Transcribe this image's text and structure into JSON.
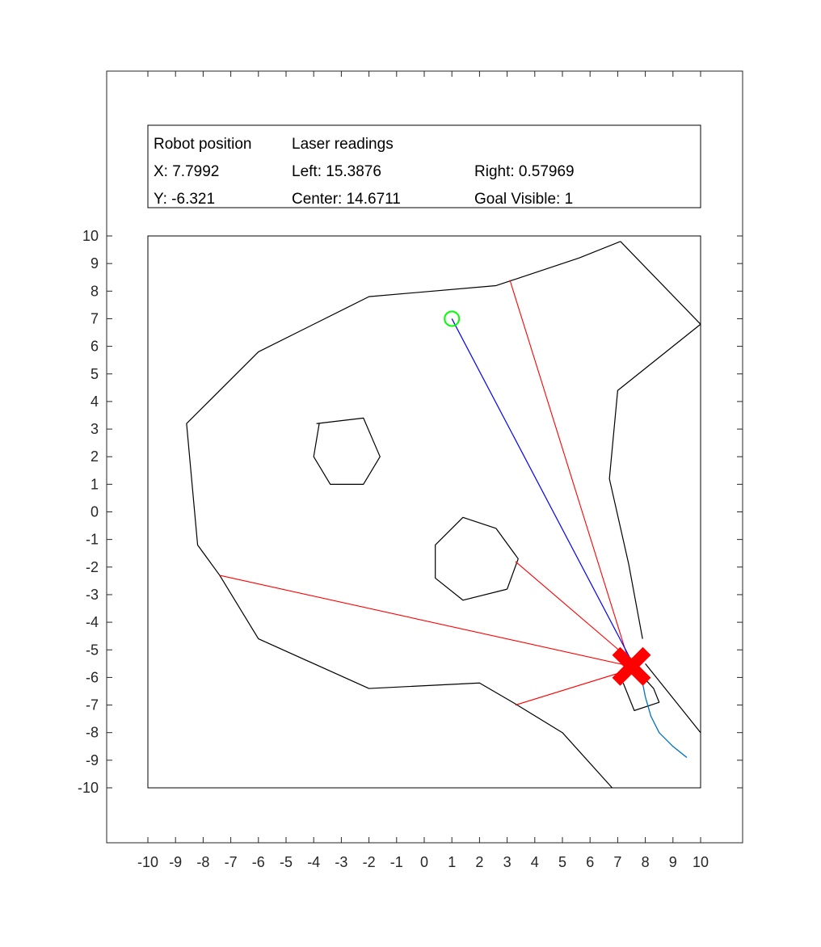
{
  "info_panel": {
    "robot_position_label": "Robot position",
    "laser_readings_label": "Laser readings",
    "x_text": "X: 7.7992",
    "y_text": "Y: -6.321",
    "left_text": "Left: 15.3876",
    "center_text": "Center: 14.6711",
    "right_text": "Right: 0.57969",
    "goal_visible_text": "Goal Visible: 1"
  },
  "chart_data": {
    "type": "line",
    "xlim": [
      -10,
      10
    ],
    "ylim": [
      -10,
      10
    ],
    "outer_xlim": [
      -11.5,
      11.5
    ],
    "outer_ylim": [
      -12,
      16
    ],
    "xticks": [
      -10,
      -9,
      -8,
      -7,
      -6,
      -5,
      -4,
      -3,
      -2,
      -1,
      0,
      1,
      2,
      3,
      4,
      5,
      6,
      7,
      8,
      9,
      10
    ],
    "yticks": [
      10,
      9,
      8,
      7,
      6,
      5,
      4,
      3,
      2,
      1,
      0,
      -1,
      -2,
      -3,
      -4,
      -5,
      -6,
      -7,
      -8,
      -9,
      -10
    ],
    "grid": false,
    "colors": {
      "walls": "#000000",
      "laser": "#ff0000",
      "goal_line": "#0000ff",
      "goal": "#00ff00",
      "path": "#0072bd",
      "robot": "#ff0000"
    },
    "environment_outline": [
      [
        7.1,
        9.8
      ],
      [
        5.6,
        9.2
      ],
      [
        2.6,
        8.2
      ],
      [
        -2.0,
        7.8
      ],
      [
        -6.0,
        5.8
      ],
      [
        -8.6,
        3.2
      ],
      [
        -8.2,
        -1.2
      ],
      [
        -7.4,
        -2.3
      ],
      [
        -6.0,
        -4.6
      ],
      [
        -2.0,
        -6.4
      ],
      [
        2.0,
        -6.2
      ],
      [
        3.2,
        -6.9
      ],
      [
        5.0,
        -8.0
      ],
      [
        6.8,
        -10.0
      ]
    ],
    "environment_outline_right": [
      [
        7.1,
        9.8
      ],
      [
        10.0,
        6.8
      ],
      [
        7.0,
        4.4
      ],
      [
        6.7,
        1.2
      ],
      [
        7.4,
        -1.9
      ],
      [
        7.9,
        -4.6
      ]
    ],
    "right_wall_lower": [
      [
        8.0,
        -5.5
      ],
      [
        10.0,
        -8.0
      ]
    ],
    "robot_box": [
      [
        7.3,
        -5.3
      ],
      [
        8.3,
        -6.4
      ],
      [
        8.5,
        -6.9
      ],
      [
        7.6,
        -7.2
      ],
      [
        7.2,
        -6.2
      ]
    ],
    "obstacles": [
      [
        [
          -3.9,
          3.2
        ],
        [
          -2.2,
          3.4
        ],
        [
          -1.6,
          2.0
        ],
        [
          -2.2,
          1.0
        ],
        [
          -3.4,
          1.0
        ],
        [
          -4.0,
          2.0
        ],
        [
          -3.8,
          3.2
        ]
      ],
      [
        [
          3.0,
          -2.8
        ],
        [
          1.4,
          -3.2
        ],
        [
          0.4,
          -2.4
        ],
        [
          0.4,
          -1.2
        ],
        [
          1.4,
          -0.2
        ],
        [
          2.6,
          -0.6
        ],
        [
          3.4,
          -1.7
        ],
        [
          3.0,
          -2.8
        ]
      ]
    ],
    "laser_rays": [
      [
        [
          7.4,
          -5.4
        ],
        [
          3.1,
          8.4
        ]
      ],
      [
        [
          7.5,
          -5.6
        ],
        [
          -7.4,
          -2.3
        ]
      ],
      [
        [
          7.5,
          -5.4
        ],
        [
          3.3,
          -1.8
        ]
      ],
      [
        [
          7.5,
          -5.7
        ],
        [
          3.3,
          -7.0
        ]
      ]
    ],
    "goal_ray": [
      [
        7.5,
        -5.4
      ],
      [
        1.0,
        7.0
      ]
    ],
    "goal": {
      "x": 1.0,
      "y": 7.0
    },
    "robot": {
      "x": 7.5,
      "y": -5.6
    },
    "path": [
      [
        9.5,
        -8.9
      ],
      [
        9.0,
        -8.5
      ],
      [
        8.5,
        -8.0
      ],
      [
        8.2,
        -7.4
      ],
      [
        8.0,
        -6.7
      ],
      [
        7.9,
        -6.2
      ],
      [
        7.8,
        -5.7
      ]
    ]
  }
}
